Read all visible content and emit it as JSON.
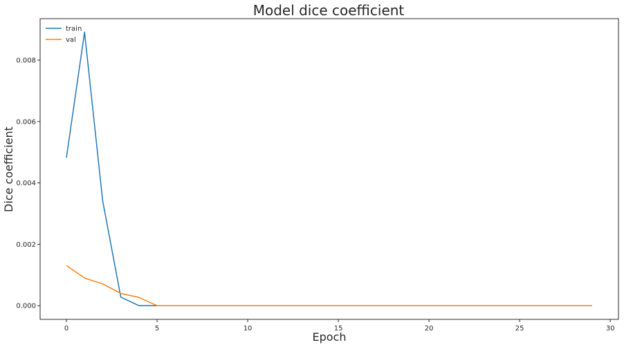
{
  "chart_data": {
    "type": "line",
    "title": "Model dice coefficient",
    "xlabel": "Epoch",
    "ylabel": "Dice coefficient",
    "xlim": [
      -1.45,
      30.45
    ],
    "ylim": [
      -0.000445,
      0.00935
    ],
    "x_ticks": [
      0,
      5,
      10,
      15,
      20,
      25,
      30
    ],
    "y_ticks": [
      0.0,
      0.002,
      0.004,
      0.006,
      0.008
    ],
    "y_tick_labels": [
      "0.000",
      "0.002",
      "0.004",
      "0.006",
      "0.008"
    ],
    "grid": false,
    "legend_position": "top-left",
    "x": [
      0,
      1,
      2,
      3,
      4,
      5,
      6,
      7,
      8,
      9,
      10,
      11,
      12,
      13,
      14,
      15,
      16,
      17,
      18,
      19,
      20,
      21,
      22,
      23,
      24,
      25,
      26,
      27,
      28,
      29
    ],
    "series": [
      {
        "name": "train",
        "color": "#1f77b4",
        "values": [
          0.00482,
          0.00891,
          0.00342,
          0.00028,
          0.0,
          0.0,
          0.0,
          0.0,
          0.0,
          0.0,
          0.0,
          0.0,
          0.0,
          0.0,
          0.0,
          0.0,
          0.0,
          0.0,
          0.0,
          0.0,
          0.0,
          0.0,
          0.0,
          0.0,
          0.0,
          0.0,
          0.0,
          0.0,
          0.0,
          0.0
        ]
      },
      {
        "name": "val",
        "color": "#ff7f0e",
        "values": [
          0.00131,
          0.0009,
          0.00071,
          0.0004,
          0.00027,
          0.0,
          0.0,
          0.0,
          0.0,
          0.0,
          0.0,
          0.0,
          0.0,
          0.0,
          0.0,
          0.0,
          0.0,
          0.0,
          0.0,
          0.0,
          0.0,
          0.0,
          0.0,
          0.0,
          0.0,
          0.0,
          0.0,
          0.0,
          0.0,
          0.0
        ]
      }
    ]
  }
}
